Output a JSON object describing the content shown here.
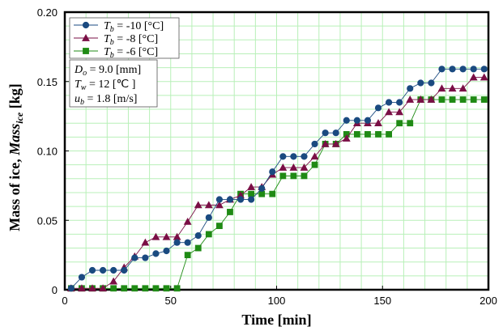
{
  "chart_data": {
    "type": "line",
    "xlabel": "Time [min]",
    "ylabel_main": "Mass of ice, ",
    "ylabel_var": "Mass",
    "ylabel_sub": "ice",
    "ylabel_unit": " [kg]",
    "xlim": [
      0,
      200
    ],
    "ylim": [
      0,
      0.2
    ],
    "xticks": [
      0,
      50,
      100,
      150,
      200
    ],
    "xtick_labels": [
      "0",
      "50",
      "100",
      "150",
      "200"
    ],
    "yticks": [
      0,
      0.05,
      0.1,
      0.15,
      0.2
    ],
    "ytick_labels": [
      "0",
      "0.05",
      "0.10",
      "0.15",
      "0.20"
    ],
    "grid": true,
    "legend_position": "top-left",
    "conditions": [
      {
        "var": "D",
        "sub": "o",
        "text": " = 9.0 [mm]"
      },
      {
        "var": "T",
        "sub": "w",
        "text": " = 12 [℃ ]"
      },
      {
        "var": "u",
        "sub": "b",
        "text": "  = 1.8 [m/s]"
      }
    ],
    "series": [
      {
        "name_var": "T",
        "name_sub": "b",
        "name_text": " = -10 [°C]",
        "color": "#1a4a80",
        "marker": "circle",
        "x": [
          3,
          8,
          13,
          18,
          23,
          28,
          33,
          38,
          43,
          48,
          53,
          58,
          63,
          68,
          73,
          78,
          83,
          88,
          93,
          98,
          103,
          108,
          113,
          118,
          123,
          128,
          133,
          138,
          143,
          148,
          153,
          158,
          163,
          168,
          173,
          178,
          183,
          188,
          193,
          198
        ],
        "y": [
          0.001,
          0.009,
          0.014,
          0.014,
          0.014,
          0.014,
          0.023,
          0.023,
          0.026,
          0.028,
          0.034,
          0.034,
          0.039,
          0.052,
          0.065,
          0.065,
          0.065,
          0.065,
          0.073,
          0.085,
          0.096,
          0.096,
          0.096,
          0.105,
          0.113,
          0.113,
          0.122,
          0.122,
          0.122,
          0.131,
          0.135,
          0.135,
          0.145,
          0.149,
          0.149,
          0.159,
          0.159,
          0.159,
          0.159,
          0.159
        ]
      },
      {
        "name_var": "T",
        "name_sub": "b",
        "name_text": " = -8 [°C]",
        "color": "#7a0f45",
        "marker": "triangle",
        "x": [
          3,
          8,
          13,
          18,
          23,
          28,
          33,
          38,
          43,
          48,
          53,
          58,
          63,
          68,
          73,
          78,
          83,
          88,
          93,
          98,
          103,
          108,
          113,
          118,
          123,
          128,
          133,
          138,
          143,
          148,
          153,
          158,
          163,
          168,
          173,
          178,
          183,
          188,
          193,
          198
        ],
        "y": [
          0.001,
          0.001,
          0.001,
          0.001,
          0.006,
          0.016,
          0.024,
          0.034,
          0.038,
          0.038,
          0.038,
          0.049,
          0.061,
          0.061,
          0.061,
          0.065,
          0.068,
          0.074,
          0.074,
          0.083,
          0.088,
          0.088,
          0.088,
          0.096,
          0.105,
          0.105,
          0.109,
          0.12,
          0.12,
          0.12,
          0.128,
          0.128,
          0.137,
          0.137,
          0.137,
          0.145,
          0.145,
          0.145,
          0.153,
          0.153
        ]
      },
      {
        "name_var": "T",
        "name_sub": "b",
        "name_text": " = -6 [°C]",
        "color": "#1f8a14",
        "marker": "square",
        "x": [
          3,
          8,
          13,
          18,
          23,
          28,
          33,
          38,
          43,
          48,
          53,
          58,
          63,
          68,
          73,
          78,
          83,
          88,
          93,
          98,
          103,
          108,
          113,
          118,
          123,
          128,
          133,
          138,
          143,
          148,
          153,
          158,
          163,
          168,
          173,
          178,
          183,
          188,
          193,
          198
        ],
        "y": [
          0.001,
          0.001,
          0.001,
          0.001,
          0.001,
          0.001,
          0.001,
          0.001,
          0.001,
          0.001,
          0.001,
          0.025,
          0.03,
          0.04,
          0.046,
          0.056,
          0.069,
          0.069,
          0.069,
          0.069,
          0.082,
          0.082,
          0.082,
          0.09,
          0.105,
          0.105,
          0.112,
          0.112,
          0.112,
          0.112,
          0.112,
          0.12,
          0.12,
          0.137,
          0.137,
          0.137,
          0.137,
          0.137,
          0.137,
          0.137
        ]
      }
    ]
  }
}
